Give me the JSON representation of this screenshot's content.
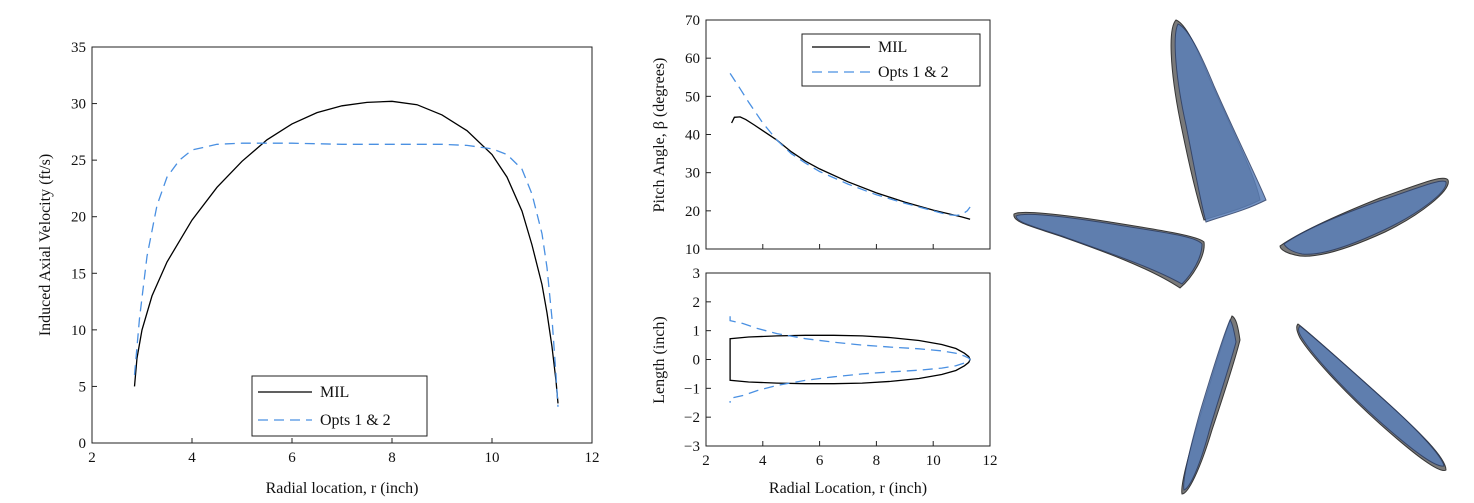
{
  "chart_data": [
    {
      "type": "line",
      "xlabel": "Radial location, r (inch)",
      "ylabel": "Induced Axial Velocity (ft/s)",
      "xlim": [
        2,
        12
      ],
      "ylim": [
        0,
        35
      ],
      "xticks": [
        "2",
        "4",
        "6",
        "8",
        "10",
        "12"
      ],
      "yticks": [
        "0",
        "5",
        "10",
        "15",
        "20",
        "25",
        "30",
        "35"
      ],
      "legend": "bottom-center",
      "series": [
        {
          "name": "MIL",
          "color": "#000000",
          "style": "solid",
          "x": [
            2.85,
            2.9,
            3.0,
            3.2,
            3.5,
            4.0,
            4.5,
            5.0,
            5.5,
            6.0,
            6.5,
            7.0,
            7.5,
            8.0,
            8.5,
            9.0,
            9.5,
            10.0,
            10.3,
            10.6,
            10.8,
            11.0,
            11.1,
            11.2,
            11.28,
            11.32
          ],
          "y": [
            5.0,
            7.5,
            10.0,
            13.0,
            16.0,
            19.7,
            22.6,
            24.9,
            26.8,
            28.2,
            29.2,
            29.8,
            30.1,
            30.2,
            29.9,
            29.0,
            27.6,
            25.5,
            23.5,
            20.5,
            17.5,
            14.0,
            11.5,
            8.5,
            5.5,
            3.5
          ]
        },
        {
          "name": "Opts 1 & 2",
          "color": "#4a90e2",
          "style": "dashed",
          "x": [
            2.85,
            2.95,
            3.1,
            3.3,
            3.5,
            3.75,
            4.0,
            4.5,
            5.0,
            6.0,
            7.0,
            8.0,
            9.0,
            9.5,
            10.0,
            10.3,
            10.6,
            10.8,
            11.0,
            11.1,
            11.2,
            11.28,
            11.32
          ],
          "y": [
            6.0,
            11.0,
            16.5,
            21.0,
            23.5,
            25.0,
            25.9,
            26.4,
            26.5,
            26.5,
            26.4,
            26.4,
            26.4,
            26.3,
            26.0,
            25.5,
            24.2,
            22.0,
            18.5,
            15.5,
            11.0,
            6.0,
            3.2
          ]
        }
      ]
    },
    {
      "type": "line",
      "xlabel": "",
      "ylabel": "Pitch Angle, β (degrees)",
      "xlim": [
        2,
        12
      ],
      "ylim": [
        10,
        70
      ],
      "yticks": [
        "10",
        "20",
        "30",
        "40",
        "50",
        "60",
        "70"
      ],
      "legend": "top-right",
      "series": [
        {
          "name": "MIL",
          "color": "#000000",
          "style": "solid",
          "x": [
            2.9,
            3.0,
            3.2,
            3.4,
            3.7,
            4.0,
            4.5,
            5.0,
            5.5,
            6.0,
            7.0,
            8.0,
            9.0,
            10.0,
            10.5,
            11.0,
            11.3
          ],
          "y": [
            43.0,
            44.5,
            44.6,
            43.9,
            42.5,
            41.0,
            38.5,
            35.5,
            33.0,
            31.0,
            27.6,
            24.7,
            22.3,
            20.2,
            19.3,
            18.4,
            17.8
          ]
        },
        {
          "name": "Opts 1 & 2",
          "color": "#4a90e2",
          "style": "dashed",
          "x": [
            2.85,
            3.2,
            3.5,
            4.0,
            4.5,
            5.0,
            5.5,
            6.0,
            7.0,
            8.0,
            9.0,
            10.0,
            10.5,
            10.8,
            11.0,
            11.2,
            11.3
          ],
          "y": [
            56.0,
            52.0,
            48.5,
            43.0,
            38.5,
            35.0,
            32.5,
            30.3,
            27.0,
            24.2,
            22.0,
            20.0,
            19.0,
            18.8,
            19.0,
            20.0,
            21.0
          ]
        }
      ]
    },
    {
      "type": "line",
      "xlabel": "Radial Location, r (inch)",
      "ylabel": "Length (inch)",
      "xlim": [
        2,
        12
      ],
      "ylim": [
        -3,
        3
      ],
      "xticks": [
        "2",
        "4",
        "6",
        "8",
        "10",
        "12"
      ],
      "yticks": [
        "−3",
        "−2",
        "−1",
        "0",
        "1",
        "2",
        "3"
      ],
      "series": [
        {
          "name": "MIL",
          "color": "#000000",
          "style": "solid",
          "x": [
            2.85,
            2.85,
            3.5,
            4.5,
            5.5,
            6.5,
            7.5,
            8.5,
            9.5,
            10.3,
            10.8,
            11.1,
            11.25,
            11.3,
            11.25,
            11.1,
            10.8,
            10.3,
            9.5,
            8.5,
            7.5,
            6.5,
            5.5,
            4.5,
            3.5,
            2.85,
            2.85
          ],
          "y": [
            -0.0,
            0.72,
            0.78,
            0.82,
            0.84,
            0.84,
            0.82,
            0.76,
            0.66,
            0.52,
            0.38,
            0.22,
            0.1,
            0.0,
            -0.1,
            -0.22,
            -0.38,
            -0.52,
            -0.66,
            -0.76,
            -0.82,
            -0.84,
            -0.84,
            -0.82,
            -0.78,
            -0.72,
            -0.0
          ]
        },
        {
          "name": "Opts 1 & 2",
          "color": "#4a90e2",
          "style": "dashed",
          "x": [
            2.85,
            2.85,
            3.3,
            3.8,
            4.5,
            5.5,
            6.5,
            7.5,
            8.5,
            9.5,
            10.3,
            10.8,
            11.1,
            11.25,
            11.3,
            11.25,
            11.1,
            10.8,
            10.3,
            9.5,
            8.5,
            7.5,
            6.5,
            5.5,
            4.5,
            3.8,
            3.3,
            2.85,
            2.85
          ],
          "y": [
            1.5,
            1.35,
            1.25,
            1.08,
            0.9,
            0.72,
            0.6,
            0.5,
            0.43,
            0.37,
            0.3,
            0.22,
            0.12,
            0.05,
            0.0,
            -0.05,
            -0.12,
            -0.22,
            -0.3,
            -0.37,
            -0.43,
            -0.5,
            -0.6,
            -0.72,
            -0.9,
            -1.08,
            -1.25,
            -1.35,
            -1.5
          ]
        }
      ]
    }
  ],
  "legend": {
    "mil": "MIL",
    "opts": "Opts 1 & 2"
  },
  "propeller": {
    "blade_count": 5,
    "fill_color": "#5b7fb8",
    "outline_color": "#333333"
  }
}
